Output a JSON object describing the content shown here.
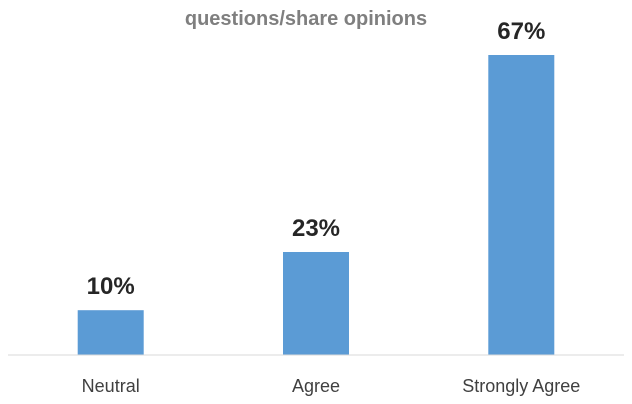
{
  "chart_data": {
    "type": "bar",
    "title": "questions/share opinions",
    "xlabel": "",
    "ylabel": "",
    "categories": [
      "Neutral",
      "Agree",
      "Strongly Agree"
    ],
    "values": [
      10,
      23,
      67
    ],
    "data_labels": [
      "10%",
      "23%",
      "67%"
    ],
    "unit": "%",
    "ylim": [
      0,
      67
    ],
    "grid": false,
    "legend": "none"
  },
  "colors": {
    "bar": "#5b9bd5",
    "axis": "#d9d9d9",
    "title": "#7f7f7f",
    "data_label": "#262626",
    "category_label": "#404040"
  }
}
